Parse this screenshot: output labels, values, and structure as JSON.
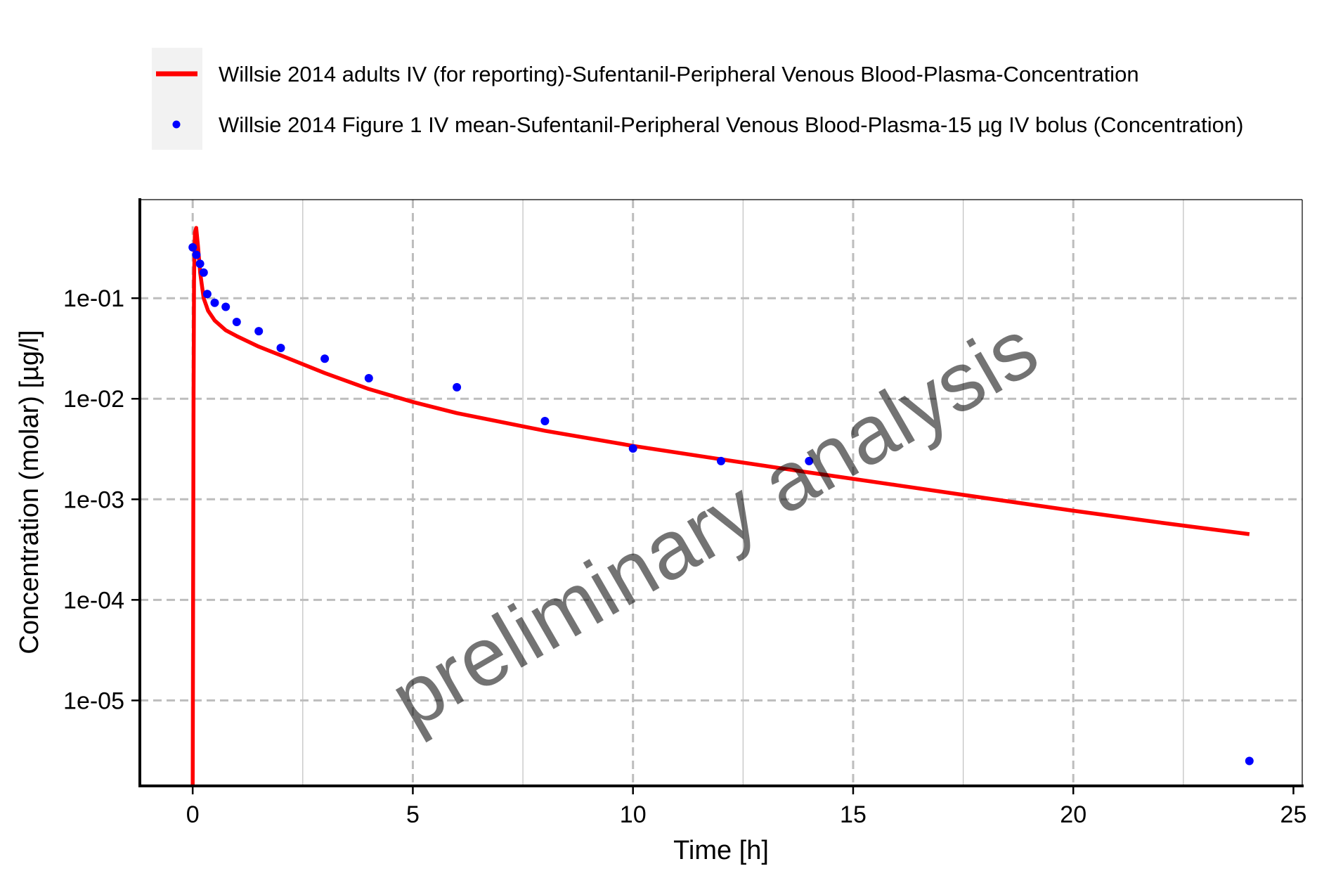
{
  "chart_data": {
    "type": "line",
    "title": "",
    "xlabel": "Time [h]",
    "ylabel": "Concentration (molar) [µg/l]",
    "watermark": "preliminary analysis",
    "x_scale": "linear",
    "y_scale": "log10",
    "xlim": [
      -1.2,
      25.2
    ],
    "ylim_log10": [
      -5.85,
      -0.02
    ],
    "x_ticks": [
      0,
      5,
      10,
      15,
      20,
      25
    ],
    "x_tick_labels": [
      "0",
      "5",
      "10",
      "15",
      "20",
      "25"
    ],
    "y_ticks": [
      1e-05,
      0.0001,
      0.001,
      0.01,
      0.1
    ],
    "y_tick_labels": [
      "1e-05",
      "1e-04",
      "1e-03",
      "1e-02",
      "1e-01"
    ],
    "grid": true,
    "grid_style": "dashed",
    "legend_position": "top",
    "series": [
      {
        "name": "Willsie 2014 adults IV (for reporting)-Sufentanil-Peripheral Venous Blood-Plasma-Concentration",
        "kind": "line",
        "color": "#ff0000",
        "x": [
          0,
          0.02,
          0.03,
          0.05,
          0.08,
          0.12,
          0.17,
          0.25,
          0.35,
          0.5,
          0.75,
          1,
          1.5,
          2,
          3,
          4,
          5,
          6,
          8,
          10,
          12,
          14,
          16,
          18,
          20,
          22,
          24
        ],
        "y": [
          1.4e-06,
          0.01,
          0.15,
          0.45,
          0.5,
          0.33,
          0.18,
          0.1,
          0.075,
          0.06,
          0.048,
          0.042,
          0.033,
          0.027,
          0.018,
          0.0125,
          0.0093,
          0.0072,
          0.0048,
          0.0034,
          0.0025,
          0.00185,
          0.00138,
          0.00103,
          0.00077,
          0.000585,
          0.00045
        ]
      },
      {
        "name": "Willsie 2014 Figure 1 IV mean-Sufentanil-Peripheral Venous Blood-Plasma-15 µg IV bolus (Concentration)",
        "kind": "scatter",
        "color": "#0000ff",
        "x": [
          0,
          0.083,
          0.167,
          0.25,
          0.33,
          0.5,
          0.75,
          1,
          1.5,
          2,
          3,
          4,
          6,
          8,
          10,
          12,
          14,
          24
        ],
        "y": [
          0.32,
          0.27,
          0.22,
          0.18,
          0.11,
          0.09,
          0.082,
          0.058,
          0.047,
          0.032,
          0.025,
          0.016,
          0.013,
          0.006,
          0.0032,
          0.0024,
          0.0024,
          2.5e-06
        ]
      }
    ]
  }
}
